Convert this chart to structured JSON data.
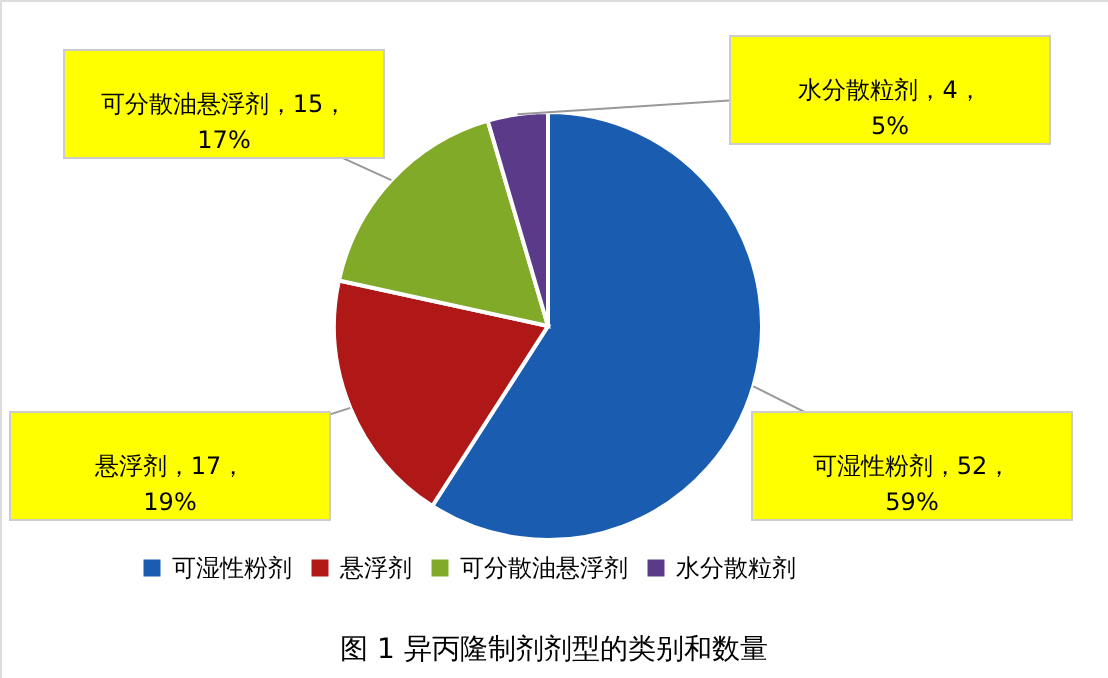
{
  "chart_data": {
    "type": "pie",
    "title": "图 1 异丙隆制剂剂型的类别和数量",
    "categories": [
      "可湿性粉剂",
      "悬浮剂",
      "可分散油悬浮剂",
      "水分散粒剂"
    ],
    "values": [
      52,
      17,
      15,
      4
    ],
    "colors": [
      "#1a5db0",
      "#b01818",
      "#80aa28",
      "#5c3a8a"
    ],
    "value_labels": [
      "可湿性粉剂，52，\n59%",
      "悬浮剂，17，\n19%",
      "可分散油悬浮剂，15，\n17%",
      "水分散粒剂，4，\n5%"
    ],
    "legend": "bottom"
  }
}
